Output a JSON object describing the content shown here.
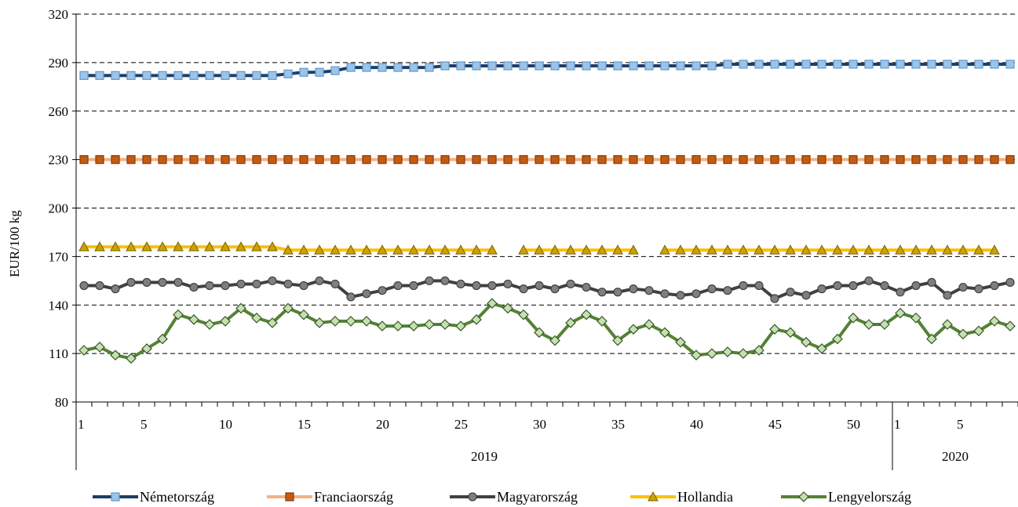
{
  "chart_data": {
    "type": "line",
    "ylabel": "EUR/100 kg",
    "ylim": [
      80,
      320
    ],
    "yticks": [
      80,
      110,
      140,
      170,
      200,
      230,
      260,
      290,
      320
    ],
    "grid": "horizontal-dashed",
    "legend_position": "bottom",
    "x_week_labels": [
      {
        "index": 0,
        "label": "1"
      },
      {
        "index": 4,
        "label": "5"
      },
      {
        "index": 9,
        "label": "10"
      },
      {
        "index": 14,
        "label": "15"
      },
      {
        "index": 19,
        "label": "20"
      },
      {
        "index": 24,
        "label": "25"
      },
      {
        "index": 29,
        "label": "30"
      },
      {
        "index": 34,
        "label": "35"
      },
      {
        "index": 39,
        "label": "40"
      },
      {
        "index": 44,
        "label": "45"
      },
      {
        "index": 49,
        "label": "50"
      },
      {
        "index": 52,
        "label": "1"
      },
      {
        "index": 56,
        "label": "5"
      }
    ],
    "years": [
      {
        "label": "2019",
        "start_index": 0,
        "end_index": 51
      },
      {
        "label": "2020",
        "start_index": 52,
        "end_index": 59
      }
    ],
    "series": [
      {
        "name": "Németország",
        "color": "#1f3d66",
        "marker": "square",
        "marker_fill": "#9dc3e6",
        "marker_stroke": "#5b9bd5",
        "values": [
          282,
          282,
          282,
          282,
          282,
          282,
          282,
          282,
          282,
          282,
          282,
          282,
          282,
          283,
          284,
          284,
          285,
          287,
          287,
          287,
          287,
          287,
          287,
          288,
          288,
          288,
          288,
          288,
          288,
          288,
          288,
          288,
          288,
          288,
          288,
          288,
          288,
          288,
          288,
          288,
          288,
          289,
          289,
          289,
          289,
          289,
          289,
          289,
          289,
          289,
          289,
          289,
          289,
          289,
          289,
          289,
          289,
          289,
          289,
          289
        ]
      },
      {
        "name": "Franciaország",
        "color": "#f4b183",
        "marker": "square",
        "marker_fill": "#c55a11",
        "marker_stroke": "#843c0c",
        "values": [
          230,
          230,
          230,
          230,
          230,
          230,
          230,
          230,
          230,
          230,
          230,
          230,
          230,
          230,
          230,
          230,
          230,
          230,
          230,
          230,
          230,
          230,
          230,
          230,
          230,
          230,
          230,
          230,
          230,
          230,
          230,
          230,
          230,
          230,
          230,
          230,
          230,
          230,
          230,
          230,
          230,
          230,
          230,
          230,
          230,
          230,
          230,
          230,
          230,
          230,
          230,
          230,
          230,
          230,
          230,
          230,
          230,
          230,
          230,
          230
        ]
      },
      {
        "name": "Magyarország",
        "color": "#404040",
        "marker": "circle",
        "marker_fill": "#7f7f7f",
        "marker_stroke": "#404040",
        "values": [
          152,
          152,
          150,
          154,
          154,
          154,
          154,
          151,
          152,
          152,
          153,
          153,
          155,
          153,
          152,
          155,
          153,
          145,
          147,
          149,
          152,
          152,
          155,
          155,
          153,
          152,
          152,
          153,
          150,
          152,
          150,
          153,
          151,
          148,
          148,
          150,
          149,
          147,
          146,
          147,
          150,
          149,
          152,
          152,
          144,
          148,
          146,
          150,
          152,
          152,
          155,
          152,
          148,
          152,
          154,
          146,
          151,
          150,
          152,
          154
        ]
      },
      {
        "name": "Hollandia",
        "color": "#ffc000",
        "marker": "triangle",
        "marker_fill": "#c9a300",
        "marker_stroke": "#7f6000",
        "values": [
          176,
          176,
          176,
          176,
          176,
          176,
          176,
          176,
          176,
          176,
          176,
          176,
          176,
          174,
          174,
          174,
          174,
          174,
          174,
          174,
          174,
          174,
          174,
          174,
          174,
          174,
          174,
          null,
          174,
          174,
          174,
          174,
          174,
          174,
          174,
          174,
          null,
          174,
          174,
          174,
          174,
          174,
          174,
          174,
          174,
          174,
          174,
          174,
          174,
          174,
          174,
          174,
          174,
          174,
          174,
          174,
          174,
          174,
          174,
          null
        ]
      },
      {
        "name": "Lengyelország",
        "color": "#548235",
        "marker": "diamond",
        "marker_fill": "#c5e0b4",
        "marker_stroke": "#375623",
        "values": [
          112,
          114,
          109,
          107,
          113,
          119,
          134,
          131,
          128,
          130,
          138,
          132,
          129,
          138,
          134,
          129,
          130,
          130,
          130,
          127,
          127,
          127,
          128,
          128,
          127,
          131,
          141,
          138,
          134,
          123,
          118,
          129,
          134,
          130,
          118,
          125,
          128,
          123,
          117,
          109,
          110,
          111,
          110,
          112,
          125,
          123,
          117,
          113,
          119,
          132,
          128,
          128,
          135,
          132,
          119,
          128,
          122,
          124,
          130,
          127
        ]
      }
    ]
  }
}
